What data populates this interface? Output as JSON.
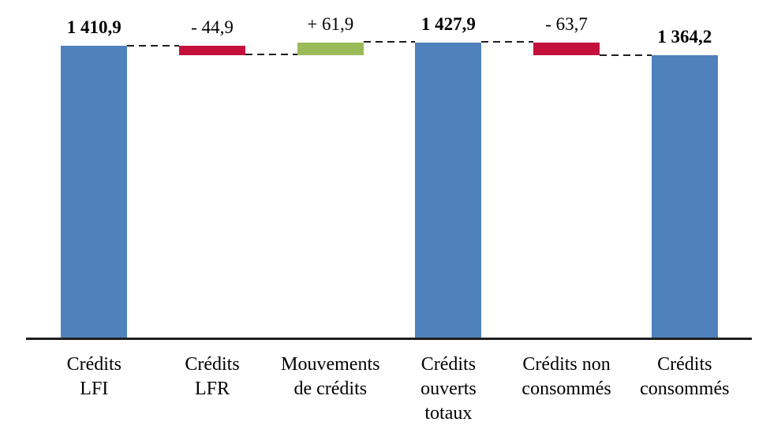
{
  "chart_data": {
    "type": "bar",
    "subtype": "waterfall",
    "title": "",
    "xlabel": "",
    "ylabel": "",
    "ylim": [
      0,
      1500
    ],
    "grid": false,
    "legend": false,
    "categories": [
      "Crédits LFI",
      "Crédits LFR",
      "Mouvements de crédits",
      "Crédits ouverts totaux",
      "Crédits non consommés",
      "Crédits consommés"
    ],
    "steps": [
      {
        "id": "credits-lfi",
        "kind": "total",
        "value": 1410.9,
        "label": "1 410,9",
        "category_lines": "Crédits\nLFI"
      },
      {
        "id": "credits-lfr",
        "kind": "delta",
        "value": -44.9,
        "label": "- 44,9",
        "category_lines": "Crédits\nLFR"
      },
      {
        "id": "mouvements-de-credits",
        "kind": "delta",
        "value": 61.9,
        "label": "+ 61,9",
        "category_lines": "Mouvements\nde crédits"
      },
      {
        "id": "credits-ouverts-totaux",
        "kind": "total",
        "value": 1427.9,
        "label": "1 427,9",
        "category_lines": "Crédits\nouverts\ntotaux"
      },
      {
        "id": "credits-non-consommes",
        "kind": "delta",
        "value": -63.7,
        "label": "- 63,7",
        "category_lines": "Crédits non\nconsommés"
      },
      {
        "id": "credits-consommes",
        "kind": "total",
        "value": 1364.2,
        "label": "1 364,2",
        "category_lines": "Crédits\nconsommés"
      }
    ],
    "colors": {
      "total": "#4f81bd",
      "increase": "#9bbb59",
      "decrease": "#c4113c",
      "connector": "#1f1f1f",
      "axis": "#1f1f1f"
    }
  }
}
